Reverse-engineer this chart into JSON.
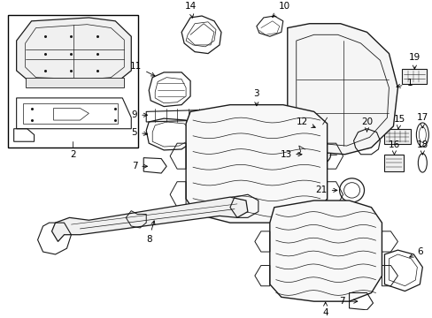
{
  "bg": "#ffffff",
  "lc": "#1a1a1a",
  "fs": 7.5,
  "fw": 4.89,
  "fh": 3.6,
  "dpi": 100
}
